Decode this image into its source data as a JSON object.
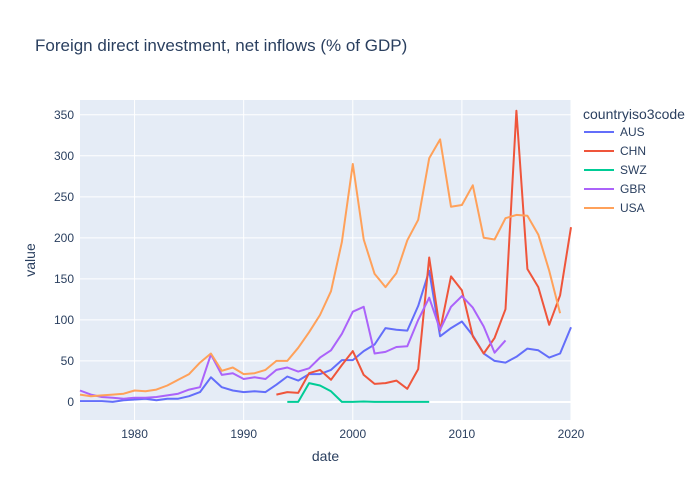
{
  "chart_data": {
    "type": "line",
    "title": "Foreign direct investment, net inflows (% of GDP)",
    "xlabel": "date",
    "ylabel": "value",
    "legend_title": "countryiso3code",
    "legend_position": "right",
    "grid": true,
    "xlim": [
      1975,
      2020
    ],
    "ylim": [
      -22,
      368
    ],
    "x_ticks": [
      1980,
      1990,
      2000,
      2010,
      2020
    ],
    "x_tick_labels": [
      "1980",
      "1990",
      "2000",
      "2010",
      "2020"
    ],
    "y_ticks": [
      0,
      50,
      100,
      150,
      200,
      250,
      300,
      350
    ],
    "y_tick_labels": [
      "0",
      "50",
      "100",
      "150",
      "200",
      "250",
      "300",
      "350"
    ],
    "series": [
      {
        "name": "AUS",
        "color": "#636efa",
        "x": [
          1975,
          1976,
          1977,
          1978,
          1979,
          1980,
          1981,
          1982,
          1983,
          1984,
          1985,
          1986,
          1987,
          1988,
          1989,
          1990,
          1991,
          1992,
          1993,
          1994,
          1995,
          1996,
          1997,
          1998,
          1999,
          2000,
          2001,
          2002,
          2003,
          2004,
          2005,
          2006,
          2007,
          2008,
          2009,
          2010,
          2011,
          2012,
          2013,
          2014,
          2015,
          2016,
          2017,
          2018,
          2019,
          2020
        ],
        "y": [
          1,
          1,
          1,
          0,
          2,
          3,
          4,
          2,
          4,
          4,
          7,
          12,
          30,
          18,
          14,
          12,
          13,
          12,
          21,
          31,
          26,
          34,
          34,
          39,
          51,
          51,
          62,
          70,
          90,
          88,
          87,
          117,
          160,
          80,
          90,
          98,
          81,
          59,
          50,
          48,
          55,
          65,
          63,
          54,
          59,
          91
        ]
      },
      {
        "name": "CHN",
        "color": "#ef553b",
        "x": [
          1993,
          1994,
          1995,
          1996,
          1997,
          1998,
          1999,
          2000,
          2001,
          2002,
          2003,
          2004,
          2005,
          2006,
          2007,
          2008,
          2009,
          2010,
          2011,
          2012,
          2013,
          2014,
          2015,
          2016,
          2017,
          2018,
          2019,
          2020
        ],
        "y": [
          9,
          12,
          11,
          35,
          39,
          27,
          45,
          62,
          33,
          22,
          23,
          26,
          16,
          40,
          176,
          87,
          153,
          136,
          80,
          59,
          78,
          113,
          355,
          162,
          140,
          94,
          130,
          213
        ]
      },
      {
        "name": "SWZ",
        "color": "#00cc96",
        "x": [
          1994,
          1995,
          1996,
          1997,
          1998,
          1999,
          2000,
          2001,
          2002,
          2003,
          2004,
          2005,
          2006,
          2007
        ],
        "y": [
          0,
          0,
          23,
          20,
          13,
          0,
          0,
          0.5,
          0,
          0,
          0,
          0,
          0,
          0
        ]
      },
      {
        "name": "GBR",
        "color": "#ab63fa",
        "x": [
          1975,
          1976,
          1977,
          1978,
          1979,
          1980,
          1981,
          1982,
          1983,
          1984,
          1985,
          1986,
          1987,
          1988,
          1989,
          1990,
          1991,
          1992,
          1993,
          1994,
          1995,
          1996,
          1997,
          1998,
          1999,
          2000,
          2001,
          2002,
          2003,
          2004,
          2005,
          2006,
          2007,
          2008,
          2009,
          2010,
          2011,
          2012,
          2013,
          2014
        ],
        "y": [
          14,
          9,
          6,
          5,
          4,
          5,
          5,
          6,
          8,
          10,
          15,
          18,
          58,
          33,
          35,
          28,
          30,
          28,
          39,
          42,
          37,
          41,
          54,
          63,
          83,
          110,
          116,
          59,
          61,
          67,
          68,
          100,
          127,
          88,
          116,
          129,
          115,
          92,
          60,
          75
        ]
      },
      {
        "name": "USA",
        "color": "#ffa15a",
        "x": [
          1975,
          1976,
          1977,
          1978,
          1979,
          1980,
          1981,
          1982,
          1983,
          1984,
          1985,
          1986,
          1987,
          1988,
          1989,
          1990,
          1991,
          1992,
          1993,
          1994,
          1995,
          1996,
          1997,
          1998,
          1999,
          2000,
          2001,
          2002,
          2003,
          2004,
          2005,
          2006,
          2007,
          2008,
          2009,
          2010,
          2011,
          2012,
          2013,
          2014,
          2015,
          2016,
          2017,
          2018,
          2019
        ],
        "y": [
          9,
          7,
          8,
          9,
          10,
          14,
          13,
          15,
          20,
          27,
          34,
          48,
          59,
          38,
          42,
          34,
          35,
          39,
          50,
          50,
          66,
          85,
          106,
          135,
          195,
          290,
          198,
          156,
          140,
          157,
          197,
          222,
          297,
          320,
          238,
          240,
          264,
          200,
          198,
          224,
          228,
          227,
          204,
          160,
          108
        ]
      }
    ]
  }
}
